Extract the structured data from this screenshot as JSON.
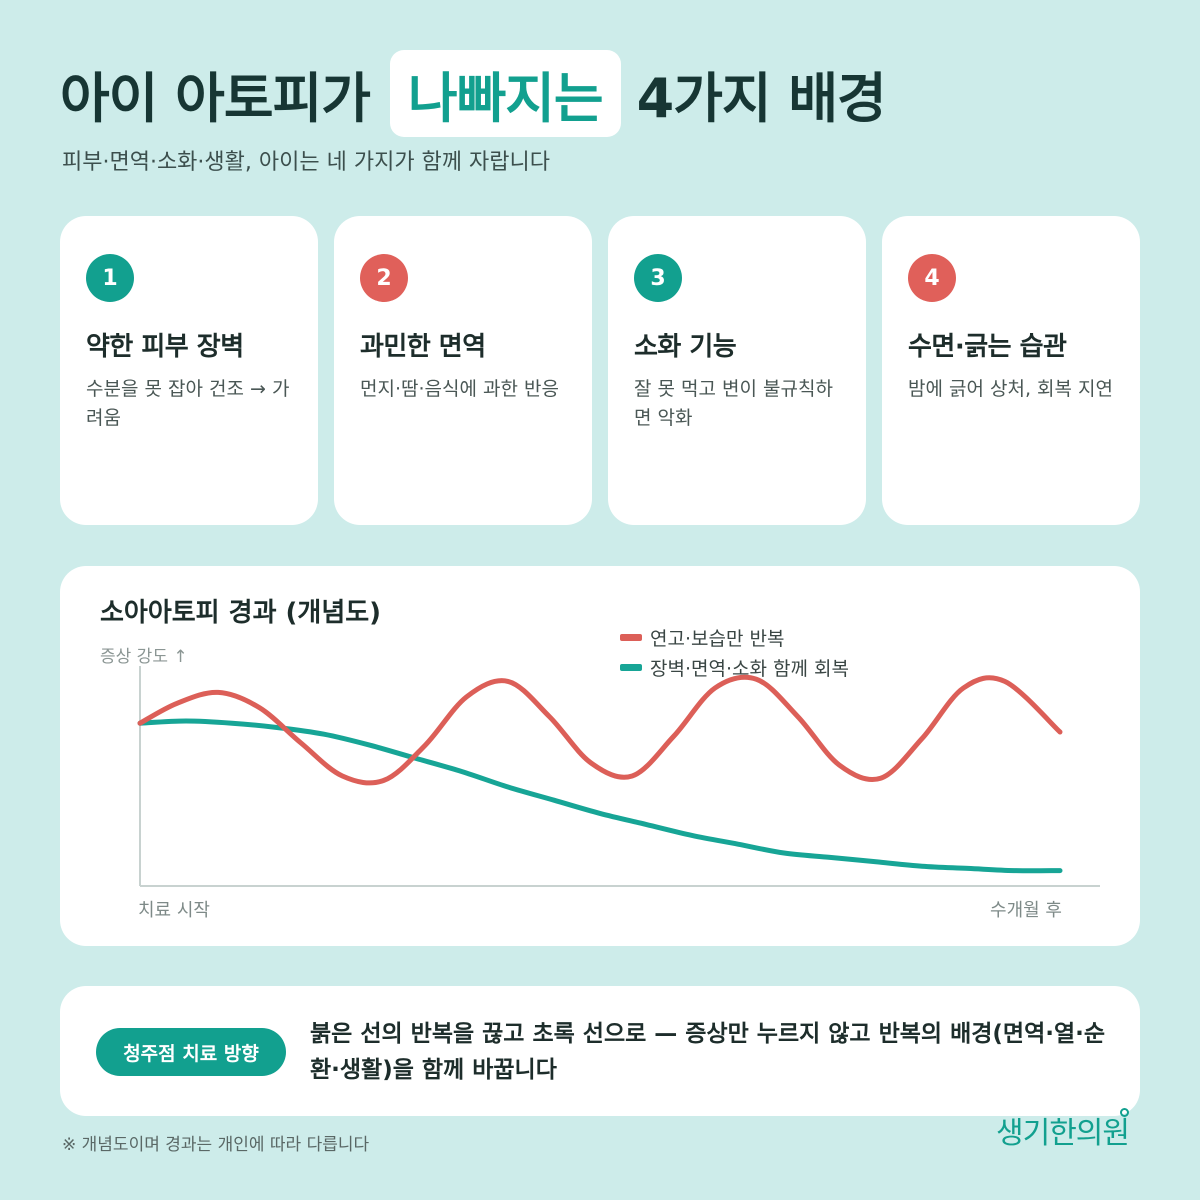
{
  "header": {
    "title_prefix": "아이 아토피가",
    "title_highlight": "나빠지는",
    "title_suffix": "4가지 배경",
    "subtitle": "피부·면역·소화·생활, 아이는 네 가지가 함께 자랍니다"
  },
  "cards": [
    {
      "number": "1",
      "title": "약한 피부 장벽",
      "desc": "수분을 못 잡아 건조 → 가려움",
      "badge_color": "#12a08f"
    },
    {
      "number": "2",
      "title": "과민한 면역",
      "desc": "먼지·땀·음식에 과한 반응",
      "badge_color": "#e0605a"
    },
    {
      "number": "3",
      "title": "소화 기능",
      "desc": "잘 못 먹고 변이 불규칙하면 악화",
      "badge_color": "#12a08f"
    },
    {
      "number": "4",
      "title": "수면·긁는 습관",
      "desc": "밤에 긁어 상처, 회복 지연",
      "badge_color": "#e0605a"
    }
  ],
  "chart_data": {
    "type": "line",
    "title": "소아아토피 경과 (개념도)",
    "ylabel": "증상 강도 ↑",
    "x_start_label": "치료 시작",
    "x_end_label": "수개월 후",
    "xlim": [
      0,
      1
    ],
    "ylim": [
      0,
      1
    ],
    "series": [
      {
        "name": "연고·보습만 반복",
        "color": "#dc5f58",
        "x": [
          0,
          0.04,
          0.085,
          0.13,
          0.175,
          0.22,
          0.265,
          0.31,
          0.355,
          0.4,
          0.445,
          0.49,
          0.535,
          0.58,
          0.625,
          0.67,
          0.715,
          0.76,
          0.805,
          0.85,
          0.895,
          0.94,
          1.0
        ],
        "values": [
          0.74,
          0.83,
          0.88,
          0.81,
          0.65,
          0.5,
          0.48,
          0.64,
          0.86,
          0.93,
          0.77,
          0.56,
          0.5,
          0.68,
          0.9,
          0.94,
          0.77,
          0.55,
          0.49,
          0.67,
          0.9,
          0.93,
          0.7
        ]
      },
      {
        "name": "장벽·면역·소화 함께 회복",
        "color": "#17a596",
        "x": [
          0,
          0.05,
          0.1,
          0.15,
          0.2,
          0.25,
          0.3,
          0.35,
          0.4,
          0.45,
          0.5,
          0.55,
          0.6,
          0.65,
          0.7,
          0.75,
          0.8,
          0.85,
          0.9,
          0.95,
          1.0
        ],
        "values": [
          0.74,
          0.75,
          0.74,
          0.72,
          0.69,
          0.64,
          0.58,
          0.52,
          0.45,
          0.39,
          0.33,
          0.28,
          0.23,
          0.19,
          0.15,
          0.13,
          0.11,
          0.09,
          0.08,
          0.07,
          0.07
        ]
      }
    ]
  },
  "bottom": {
    "pill_label": "청주점 치료 방향",
    "text": "붉은 선의 반복을 끊고 초록 선으로 — 증상만 누르지 않고 반복의 배경(면역·열·순환·생활)을 함께 바꿉니다"
  },
  "footnote": "※ 개념도이며 경과는 개인에 따라 다릅니다",
  "logo": "생기한의원",
  "colors": {
    "background": "#cdecea",
    "accent": "#12a08f",
    "red": "#e0605a"
  }
}
